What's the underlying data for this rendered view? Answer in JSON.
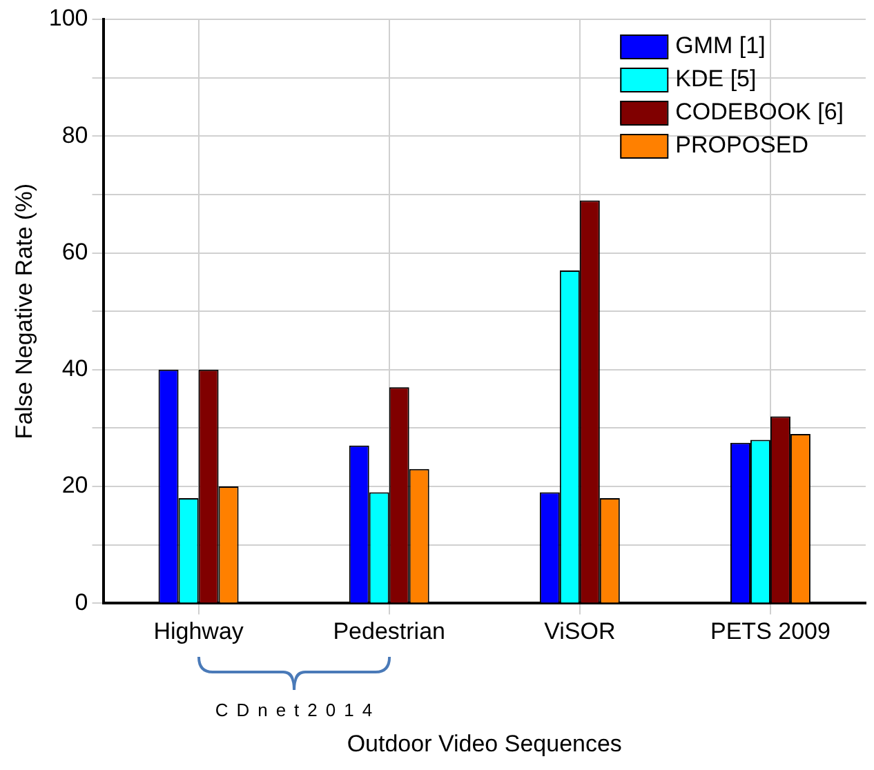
{
  "chart_data": {
    "type": "bar",
    "xlabel": "Outdoor Video Sequences",
    "ylabel": "False Negative Rate (%)",
    "categories": [
      "Highway",
      "Pedestrian",
      "ViSOR",
      "PETS 2009"
    ],
    "series": [
      {
        "name": "GMM [1]",
        "color": "#0000ff",
        "values": [
          40,
          27,
          19,
          27.5
        ]
      },
      {
        "name": "KDE [5]",
        "color": "#00ffff",
        "values": [
          18,
          19,
          57,
          28
        ]
      },
      {
        "name": "CODEBOOK [6]",
        "color": "#800000",
        "values": [
          40,
          37,
          69,
          32
        ]
      },
      {
        "name": "PROPOSED",
        "color": "#ff8000",
        "values": [
          20,
          23,
          18,
          29
        ]
      }
    ],
    "ylim": [
      0,
      100
    ],
    "yticks": [
      0,
      {
        "value": 10,
        "label": null
      },
      20,
      {
        "value": 30,
        "label": null
      },
      40,
      {
        "value": 50,
        "label": null
      },
      60,
      {
        "value": 70,
        "label": null
      },
      80,
      {
        "value": 90,
        "label": null
      },
      100
    ],
    "grid": true,
    "legend": "top right",
    "annotations": [
      "CDnet2014"
    ]
  }
}
